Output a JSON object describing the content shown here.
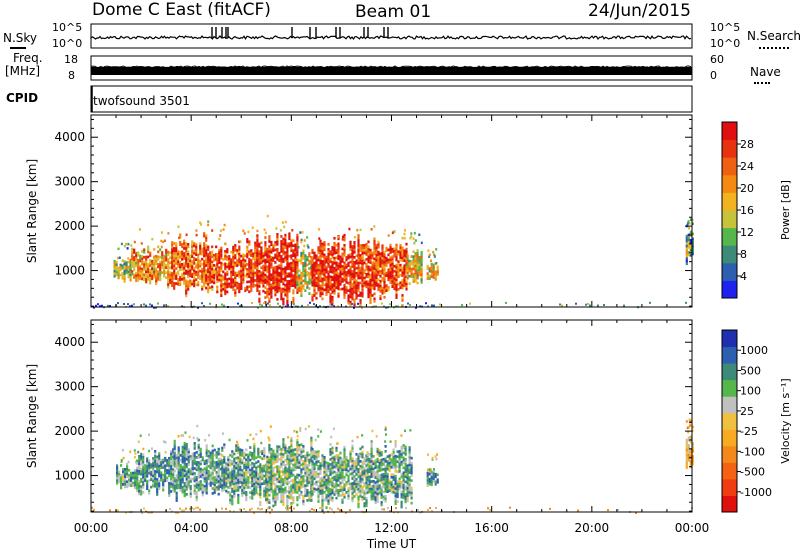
{
  "header": {
    "station": "Dome C East (fitACF)",
    "beam": "Beam 01",
    "date": "24/Jun/2015"
  },
  "strip_nsky": {
    "left_label": "N.Sky",
    "right_label": "N.Search",
    "left_ticks": [
      "10^5",
      "10^0"
    ],
    "right_ticks": [
      "10^5",
      "10^0"
    ]
  },
  "strip_freq": {
    "left_label_top": "Freq.",
    "left_label_bottom": "[MHz]",
    "right_label": "Nave",
    "left_ticks": [
      "18",
      "8"
    ],
    "right_ticks": [
      "60",
      "0"
    ]
  },
  "cpid": {
    "label": "CPID",
    "program": "twofsound 3501"
  },
  "chart_data": [
    {
      "type": "heatmap",
      "title": "",
      "quantity": "Power",
      "xlabel": "",
      "ylabel": "Slant Range [km]",
      "x_ticks": [
        "00:00",
        "04:00",
        "08:00",
        "12:00",
        "16:00",
        "20:00",
        "00:00"
      ],
      "xlim_hours": [
        0,
        24
      ],
      "ylim": [
        180,
        4500
      ],
      "y_ticks": [
        1000,
        2000,
        3000,
        4000
      ],
      "colorbar": {
        "label": "Power [dB]",
        "range": [
          0,
          32
        ],
        "ticks": [
          4,
          8,
          12,
          16,
          20,
          24,
          28
        ],
        "colors": [
          "#1e22ee",
          "#2d5fb0",
          "#3e8a78",
          "#55b64c",
          "#c6c23a",
          "#f3b220",
          "#f58a12",
          "#f06012",
          "#e8320f",
          "#e01010"
        ]
      },
      "echo_regions": [
        {
          "hours": [
            0.9,
            1.6
          ],
          "range_km": [
            750,
            1250
          ],
          "level": 0.45
        },
        {
          "hours": [
            1.6,
            3.2
          ],
          "range_km": [
            650,
            1550
          ],
          "level": 0.65
        },
        {
          "hours": [
            3.2,
            5.0
          ],
          "range_km": [
            500,
            1750
          ],
          "level": 0.75
        },
        {
          "hours": [
            5.0,
            6.6
          ],
          "range_km": [
            450,
            1650
          ],
          "level": 0.8
        },
        {
          "hours": [
            6.6,
            8.2
          ],
          "range_km": [
            300,
            1850
          ],
          "level": 0.9
        },
        {
          "hours": [
            8.2,
            8.8
          ],
          "range_km": [
            450,
            1500
          ],
          "level": 0.5
        },
        {
          "hours": [
            8.8,
            10.8
          ],
          "range_km": [
            250,
            1700
          ],
          "level": 0.88
        },
        {
          "hours": [
            10.8,
            12.6
          ],
          "range_km": [
            300,
            1750
          ],
          "level": 0.82
        },
        {
          "hours": [
            12.6,
            13.2
          ],
          "range_km": [
            700,
            1500
          ],
          "level": 0.5
        },
        {
          "hours": [
            13.4,
            13.8
          ],
          "range_km": [
            800,
            1150
          ],
          "level": 0.55
        },
        {
          "hours": [
            23.75,
            24.0
          ],
          "range_km": [
            1200,
            1900
          ],
          "level": 0.35
        }
      ],
      "ground_band_km": [
        180,
        300
      ]
    },
    {
      "type": "heatmap",
      "title": "",
      "quantity": "Velocity",
      "xlabel": "Time UT",
      "ylabel": "Slant Range [km]",
      "x_ticks": [
        "00:00",
        "04:00",
        "08:00",
        "12:00",
        "16:00",
        "20:00",
        "00:00"
      ],
      "xlim_hours": [
        0,
        24
      ],
      "ylim": [
        180,
        4500
      ],
      "y_ticks": [
        1000,
        2000,
        3000,
        4000
      ],
      "colorbar": {
        "label": "Velocity [m s⁻¹]",
        "ticks": [
          "-1000",
          "-500",
          "-100",
          "-25",
          "25",
          "100",
          "500",
          "1000"
        ],
        "colors": [
          "#e0100c",
          "#f03c10",
          "#f46212",
          "#f5881a",
          "#f7aa22",
          "#f0c040",
          "#c0c0c0",
          "#55b64c",
          "#3e8a78",
          "#2d5fb0",
          "#1e2fb0"
        ]
      },
      "echo_regions": [
        {
          "hours": [
            1.0,
            1.8
          ],
          "range_km": [
            700,
            1250
          ],
          "level": 0.7
        },
        {
          "hours": [
            1.8,
            3.3
          ],
          "range_km": [
            600,
            1550
          ],
          "level": 0.72
        },
        {
          "hours": [
            3.3,
            5.2
          ],
          "range_km": [
            500,
            1750
          ],
          "level": 0.72
        },
        {
          "hours": [
            5.2,
            7.0
          ],
          "range_km": [
            450,
            1700
          ],
          "level": 0.7
        },
        {
          "hours": [
            7.0,
            8.8
          ],
          "range_km": [
            250,
            1850
          ],
          "level": 0.66
        },
        {
          "hours": [
            8.8,
            11.0
          ],
          "range_km": [
            300,
            1700
          ],
          "level": 0.68
        },
        {
          "hours": [
            11.0,
            12.8
          ],
          "range_km": [
            300,
            1750
          ],
          "level": 0.7
        },
        {
          "hours": [
            13.4,
            13.8
          ],
          "range_km": [
            800,
            1150
          ],
          "level": 0.72
        },
        {
          "hours": [
            23.75,
            24.0
          ],
          "range_km": [
            1200,
            1900
          ],
          "level": 0.45
        }
      ],
      "ground_band_km": [
        180,
        300
      ]
    }
  ]
}
